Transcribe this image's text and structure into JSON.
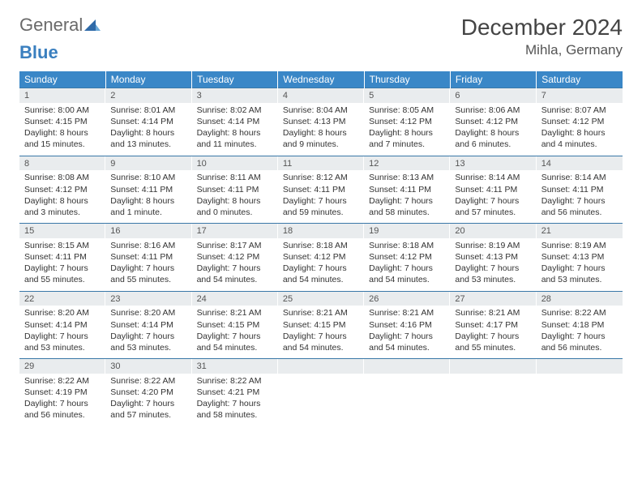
{
  "brand": {
    "word1": "General",
    "word2": "Blue"
  },
  "title": "December 2024",
  "location": "Mihla, Germany",
  "colors": {
    "header_bg": "#3a87c7",
    "header_text": "#ffffff",
    "daynum_bg": "#e9ecee",
    "row_border": "#3a78a8",
    "body_text": "#333333",
    "logo_gray": "#6a6a6a",
    "logo_blue": "#3a7fbf"
  },
  "layout": {
    "columns": 7,
    "rows": 5,
    "cell_font_size_pt": 8,
    "title_font_size_pt": 21,
    "location_font_size_pt": 13
  },
  "days_of_week": [
    "Sunday",
    "Monday",
    "Tuesday",
    "Wednesday",
    "Thursday",
    "Friday",
    "Saturday"
  ],
  "weeks": [
    [
      {
        "n": "1",
        "sr": "Sunrise: 8:00 AM",
        "ss": "Sunset: 4:15 PM",
        "dl": "Daylight: 8 hours and 15 minutes."
      },
      {
        "n": "2",
        "sr": "Sunrise: 8:01 AM",
        "ss": "Sunset: 4:14 PM",
        "dl": "Daylight: 8 hours and 13 minutes."
      },
      {
        "n": "3",
        "sr": "Sunrise: 8:02 AM",
        "ss": "Sunset: 4:14 PM",
        "dl": "Daylight: 8 hours and 11 minutes."
      },
      {
        "n": "4",
        "sr": "Sunrise: 8:04 AM",
        "ss": "Sunset: 4:13 PM",
        "dl": "Daylight: 8 hours and 9 minutes."
      },
      {
        "n": "5",
        "sr": "Sunrise: 8:05 AM",
        "ss": "Sunset: 4:12 PM",
        "dl": "Daylight: 8 hours and 7 minutes."
      },
      {
        "n": "6",
        "sr": "Sunrise: 8:06 AM",
        "ss": "Sunset: 4:12 PM",
        "dl": "Daylight: 8 hours and 6 minutes."
      },
      {
        "n": "7",
        "sr": "Sunrise: 8:07 AM",
        "ss": "Sunset: 4:12 PM",
        "dl": "Daylight: 8 hours and 4 minutes."
      }
    ],
    [
      {
        "n": "8",
        "sr": "Sunrise: 8:08 AM",
        "ss": "Sunset: 4:12 PM",
        "dl": "Daylight: 8 hours and 3 minutes."
      },
      {
        "n": "9",
        "sr": "Sunrise: 8:10 AM",
        "ss": "Sunset: 4:11 PM",
        "dl": "Daylight: 8 hours and 1 minute."
      },
      {
        "n": "10",
        "sr": "Sunrise: 8:11 AM",
        "ss": "Sunset: 4:11 PM",
        "dl": "Daylight: 8 hours and 0 minutes."
      },
      {
        "n": "11",
        "sr": "Sunrise: 8:12 AM",
        "ss": "Sunset: 4:11 PM",
        "dl": "Daylight: 7 hours and 59 minutes."
      },
      {
        "n": "12",
        "sr": "Sunrise: 8:13 AM",
        "ss": "Sunset: 4:11 PM",
        "dl": "Daylight: 7 hours and 58 minutes."
      },
      {
        "n": "13",
        "sr": "Sunrise: 8:14 AM",
        "ss": "Sunset: 4:11 PM",
        "dl": "Daylight: 7 hours and 57 minutes."
      },
      {
        "n": "14",
        "sr": "Sunrise: 8:14 AM",
        "ss": "Sunset: 4:11 PM",
        "dl": "Daylight: 7 hours and 56 minutes."
      }
    ],
    [
      {
        "n": "15",
        "sr": "Sunrise: 8:15 AM",
        "ss": "Sunset: 4:11 PM",
        "dl": "Daylight: 7 hours and 55 minutes."
      },
      {
        "n": "16",
        "sr": "Sunrise: 8:16 AM",
        "ss": "Sunset: 4:11 PM",
        "dl": "Daylight: 7 hours and 55 minutes."
      },
      {
        "n": "17",
        "sr": "Sunrise: 8:17 AM",
        "ss": "Sunset: 4:12 PM",
        "dl": "Daylight: 7 hours and 54 minutes."
      },
      {
        "n": "18",
        "sr": "Sunrise: 8:18 AM",
        "ss": "Sunset: 4:12 PM",
        "dl": "Daylight: 7 hours and 54 minutes."
      },
      {
        "n": "19",
        "sr": "Sunrise: 8:18 AM",
        "ss": "Sunset: 4:12 PM",
        "dl": "Daylight: 7 hours and 54 minutes."
      },
      {
        "n": "20",
        "sr": "Sunrise: 8:19 AM",
        "ss": "Sunset: 4:13 PM",
        "dl": "Daylight: 7 hours and 53 minutes."
      },
      {
        "n": "21",
        "sr": "Sunrise: 8:19 AM",
        "ss": "Sunset: 4:13 PM",
        "dl": "Daylight: 7 hours and 53 minutes."
      }
    ],
    [
      {
        "n": "22",
        "sr": "Sunrise: 8:20 AM",
        "ss": "Sunset: 4:14 PM",
        "dl": "Daylight: 7 hours and 53 minutes."
      },
      {
        "n": "23",
        "sr": "Sunrise: 8:20 AM",
        "ss": "Sunset: 4:14 PM",
        "dl": "Daylight: 7 hours and 53 minutes."
      },
      {
        "n": "24",
        "sr": "Sunrise: 8:21 AM",
        "ss": "Sunset: 4:15 PM",
        "dl": "Daylight: 7 hours and 54 minutes."
      },
      {
        "n": "25",
        "sr": "Sunrise: 8:21 AM",
        "ss": "Sunset: 4:15 PM",
        "dl": "Daylight: 7 hours and 54 minutes."
      },
      {
        "n": "26",
        "sr": "Sunrise: 8:21 AM",
        "ss": "Sunset: 4:16 PM",
        "dl": "Daylight: 7 hours and 54 minutes."
      },
      {
        "n": "27",
        "sr": "Sunrise: 8:21 AM",
        "ss": "Sunset: 4:17 PM",
        "dl": "Daylight: 7 hours and 55 minutes."
      },
      {
        "n": "28",
        "sr": "Sunrise: 8:22 AM",
        "ss": "Sunset: 4:18 PM",
        "dl": "Daylight: 7 hours and 56 minutes."
      }
    ],
    [
      {
        "n": "29",
        "sr": "Sunrise: 8:22 AM",
        "ss": "Sunset: 4:19 PM",
        "dl": "Daylight: 7 hours and 56 minutes."
      },
      {
        "n": "30",
        "sr": "Sunrise: 8:22 AM",
        "ss": "Sunset: 4:20 PM",
        "dl": "Daylight: 7 hours and 57 minutes."
      },
      {
        "n": "31",
        "sr": "Sunrise: 8:22 AM",
        "ss": "Sunset: 4:21 PM",
        "dl": "Daylight: 7 hours and 58 minutes."
      },
      null,
      null,
      null,
      null
    ]
  ]
}
